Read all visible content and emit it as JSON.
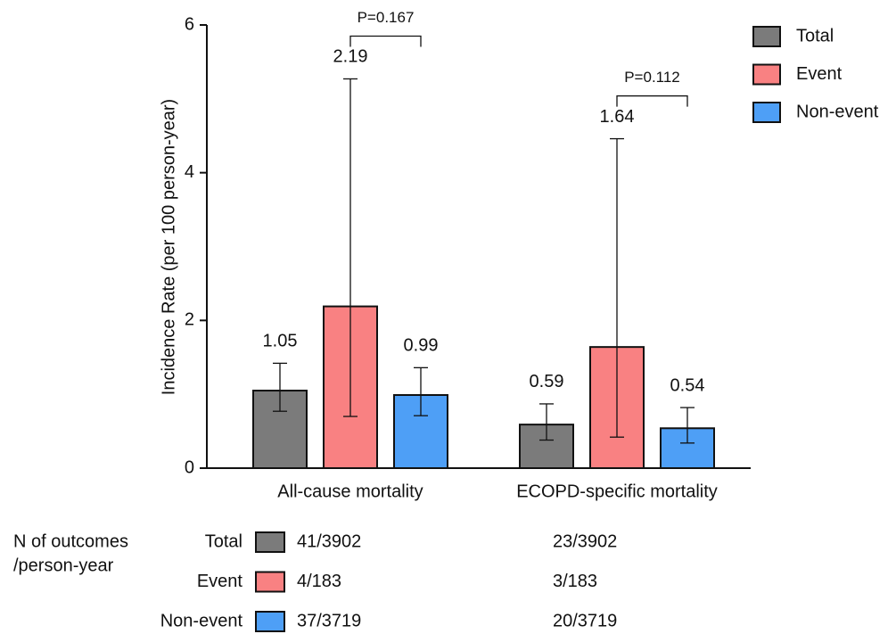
{
  "chart_data": {
    "type": "bar",
    "ylabel": "Incidence Rate (per 100 person-year)",
    "categories": [
      "All-cause mortality",
      "ECOPD-specific mortality"
    ],
    "series": [
      {
        "name": "Total",
        "color": "#7b7b7b",
        "values": [
          1.05,
          0.59
        ],
        "ci_low": [
          0.77,
          0.38
        ],
        "ci_high": [
          1.42,
          0.87
        ],
        "outcomes": [
          "41/3902",
          "23/3902"
        ]
      },
      {
        "name": "Event",
        "color": "#f98182",
        "values": [
          2.19,
          1.64
        ],
        "ci_low": [
          0.7,
          0.42
        ],
        "ci_high": [
          5.27,
          4.46
        ],
        "outcomes": [
          "4/183",
          "3/183"
        ]
      },
      {
        "name": "Non-event",
        "color": "#4e9ff6",
        "values": [
          0.99,
          0.54
        ],
        "ci_low": [
          0.71,
          0.34
        ],
        "ci_high": [
          1.36,
          0.82
        ],
        "outcomes": [
          "37/3719",
          "20/3719"
        ]
      }
    ],
    "annotations": [
      "P=0.167",
      "P=0.112"
    ],
    "ylim": [
      0,
      6
    ],
    "yticks": [
      0,
      2,
      4,
      6
    ],
    "legend": "top-right",
    "table_title": [
      "N of outcomes",
      "/person-year"
    ]
  }
}
